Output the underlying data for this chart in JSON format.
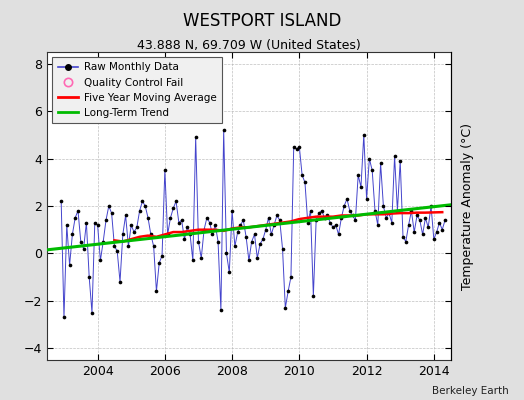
{
  "title": "WESTPORT ISLAND",
  "subtitle": "43.888 N, 69.709 W (United States)",
  "ylabel": "Temperature Anomaly (°C)",
  "credit": "Berkeley Earth",
  "ylim": [
    -4.5,
    8.5
  ],
  "xlim": [
    2002.5,
    2014.5
  ],
  "xticks": [
    2004,
    2006,
    2008,
    2010,
    2012,
    2014
  ],
  "yticks": [
    -4,
    -2,
    0,
    2,
    4,
    6,
    8
  ],
  "bg_color": "#e0e0e0",
  "plot_bg_color": "#ffffff",
  "raw_color": "#4444cc",
  "raw_marker_color": "#000000",
  "ma_color": "#ff0000",
  "trend_color": "#00bb00",
  "qc_color": "#ff69b4",
  "raw_data_x": [
    2002.917,
    2003.0,
    2003.083,
    2003.167,
    2003.25,
    2003.333,
    2003.417,
    2003.5,
    2003.583,
    2003.667,
    2003.75,
    2003.833,
    2003.917,
    2004.0,
    2004.083,
    2004.167,
    2004.25,
    2004.333,
    2004.417,
    2004.5,
    2004.583,
    2004.667,
    2004.75,
    2004.833,
    2004.917,
    2005.0,
    2005.083,
    2005.167,
    2005.25,
    2005.333,
    2005.417,
    2005.5,
    2005.583,
    2005.667,
    2005.75,
    2005.833,
    2005.917,
    2006.0,
    2006.083,
    2006.167,
    2006.25,
    2006.333,
    2006.417,
    2006.5,
    2006.583,
    2006.667,
    2006.75,
    2006.833,
    2006.917,
    2007.0,
    2007.083,
    2007.167,
    2007.25,
    2007.333,
    2007.417,
    2007.5,
    2007.583,
    2007.667,
    2007.75,
    2007.833,
    2007.917,
    2008.0,
    2008.083,
    2008.167,
    2008.25,
    2008.333,
    2008.417,
    2008.5,
    2008.583,
    2008.667,
    2008.75,
    2008.833,
    2008.917,
    2009.0,
    2009.083,
    2009.167,
    2009.25,
    2009.333,
    2009.417,
    2009.5,
    2009.583,
    2009.667,
    2009.75,
    2009.833,
    2009.917,
    2010.0,
    2010.083,
    2010.167,
    2010.25,
    2010.333,
    2010.417,
    2010.5,
    2010.583,
    2010.667,
    2010.75,
    2010.833,
    2010.917,
    2011.0,
    2011.083,
    2011.167,
    2011.25,
    2011.333,
    2011.417,
    2011.5,
    2011.583,
    2011.667,
    2011.75,
    2011.833,
    2011.917,
    2012.0,
    2012.083,
    2012.167,
    2012.25,
    2012.333,
    2012.417,
    2012.5,
    2012.583,
    2012.667,
    2012.75,
    2012.833,
    2012.917,
    2013.0,
    2013.083,
    2013.167,
    2013.25,
    2013.333,
    2013.417,
    2013.5,
    2013.583,
    2013.667,
    2013.75,
    2013.833,
    2013.917,
    2014.0,
    2014.083,
    2014.167,
    2014.25,
    2014.333
  ],
  "raw_data_y": [
    2.2,
    -2.7,
    1.2,
    -0.5,
    0.8,
    1.5,
    1.8,
    0.5,
    0.2,
    1.3,
    -1.0,
    -2.5,
    1.3,
    1.2,
    -0.3,
    0.5,
    1.4,
    2.0,
    1.7,
    0.3,
    0.1,
    -1.2,
    0.8,
    1.6,
    0.3,
    1.2,
    0.9,
    1.1,
    1.8,
    2.2,
    2.0,
    1.5,
    0.8,
    0.3,
    -1.6,
    -0.4,
    -0.1,
    3.5,
    0.8,
    1.5,
    1.9,
    2.2,
    1.3,
    1.4,
    0.6,
    1.1,
    0.8,
    -0.3,
    4.9,
    0.5,
    -0.2,
    1.0,
    1.5,
    1.3,
    0.8,
    1.2,
    0.5,
    -2.4,
    5.2,
    0.0,
    -0.8,
    1.8,
    0.3,
    0.9,
    1.2,
    1.4,
    0.7,
    -0.3,
    0.5,
    0.8,
    -0.2,
    0.4,
    0.6,
    1.0,
    1.5,
    0.8,
    1.2,
    1.6,
    1.4,
    0.2,
    -2.3,
    -1.6,
    -1.0,
    4.5,
    4.4,
    4.5,
    3.3,
    3.0,
    1.3,
    1.8,
    -1.8,
    1.4,
    1.7,
    1.8,
    1.5,
    1.6,
    1.3,
    1.1,
    1.2,
    0.8,
    1.5,
    2.0,
    2.3,
    1.8,
    1.6,
    1.4,
    3.3,
    2.8,
    5.0,
    2.3,
    4.0,
    3.5,
    1.8,
    1.2,
    3.8,
    2.0,
    1.5,
    1.7,
    1.3,
    4.1,
    1.8,
    3.9,
    0.7,
    0.5,
    1.2,
    1.8,
    0.9,
    1.6,
    1.4,
    0.8,
    1.5,
    1.1,
    2.0,
    0.6,
    0.9,
    1.3,
    1.0,
    1.4
  ],
  "ma_x": [
    2004.5,
    2004.75,
    2005.0,
    2005.25,
    2005.5,
    2005.75,
    2006.0,
    2006.25,
    2006.5,
    2006.75,
    2007.0,
    2007.25,
    2007.5,
    2007.75,
    2008.0,
    2008.25,
    2008.5,
    2008.75,
    2009.0,
    2009.25,
    2009.5,
    2009.75,
    2010.0,
    2010.25,
    2010.5,
    2010.75,
    2011.0,
    2011.25,
    2011.5,
    2011.75,
    2012.0,
    2012.25,
    2012.5,
    2012.75,
    2013.0,
    2013.25,
    2013.5,
    2013.75,
    2014.0,
    2014.25
  ],
  "ma_y": [
    0.55,
    0.5,
    0.6,
    0.7,
    0.75,
    0.7,
    0.8,
    0.9,
    0.9,
    0.95,
    1.0,
    1.0,
    1.0,
    0.95,
    1.05,
    1.1,
    1.1,
    1.15,
    1.2,
    1.25,
    1.3,
    1.35,
    1.45,
    1.5,
    1.55,
    1.55,
    1.55,
    1.6,
    1.6,
    1.6,
    1.65,
    1.65,
    1.65,
    1.68,
    1.7,
    1.7,
    1.72,
    1.72,
    1.73,
    1.74
  ],
  "trend_x": [
    2002.5,
    2014.5
  ],
  "trend_y": [
    0.15,
    2.05
  ]
}
